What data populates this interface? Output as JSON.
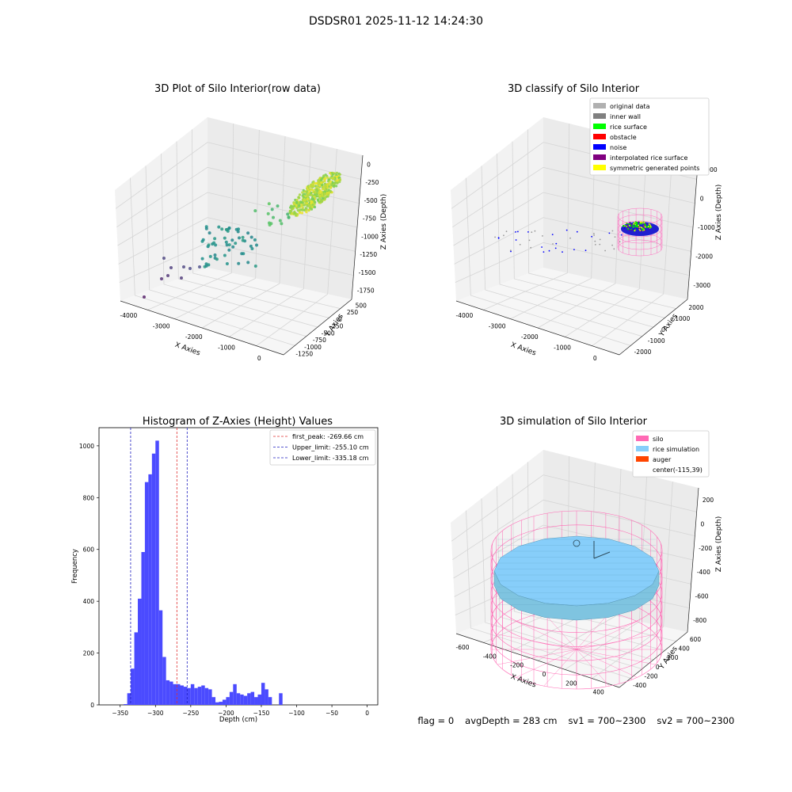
{
  "suptitle": "DSDSR01 2025-11-12 14:24:30",
  "footer": {
    "flag": "flag = 0",
    "avg_depth": "avgDepth = 283 cm",
    "sv1": "sv1 = 700~2300",
    "sv2": "sv2 = 700~2300"
  },
  "colors": {
    "hist_bar": "#4b4bff",
    "first_peak": "#e03030",
    "limits": "#2020c0",
    "silo": "#ff69b4",
    "rice_simulation": "#87cefa",
    "auger": "#ff4500",
    "viridis_low": "#440154",
    "viridis_mid": "#21918c",
    "viridis_high": "#fde725"
  },
  "chart_data": [
    {
      "type": "scatter",
      "projection": "3d",
      "title": "3D Plot of Silo Interior(row data)",
      "xlabel": "X Axies",
      "ylabel": "Y Axies",
      "zlabel": "Z Axies (Depth)",
      "x_ticks": [
        -4000,
        -3000,
        -2000,
        -1000,
        0
      ],
      "y_ticks": [
        -1250,
        -1000,
        -750,
        -500,
        -250,
        0,
        250,
        500
      ],
      "z_ticks": [
        -1750,
        -1500,
        -1250,
        -1000,
        -750,
        -500,
        -250,
        0
      ],
      "colormap": "viridis",
      "points_note_values": [
        {
          "x": -4300,
          "y": -300,
          "z": -1900
        },
        {
          "x": -3500,
          "y": -200,
          "z": -1700
        },
        {
          "x": -3300,
          "y": 0,
          "z": -1650
        },
        {
          "x": -2800,
          "y": 100,
          "z": -1550
        },
        {
          "x": -2200,
          "y": 150,
          "z": -1400
        },
        {
          "x": -1800,
          "y": 200,
          "z": -1250
        },
        {
          "x": -1200,
          "y": 250,
          "z": -900
        },
        {
          "x": -500,
          "y": 300,
          "z": -400
        }
      ]
    },
    {
      "type": "scatter",
      "projection": "3d",
      "title": "3D classify of Silo Interior",
      "xlabel": "X Axies",
      "ylabel": "Y Axies",
      "zlabel": "Z Axies (Depth)",
      "x_ticks": [
        -4000,
        -3000,
        -2000,
        -1000,
        0
      ],
      "y_ticks": [
        -2000,
        -1000,
        0,
        1000,
        2000
      ],
      "z_ticks": [
        -3000,
        -2000,
        -1000,
        0,
        1000
      ],
      "legend": {
        "placement": "top-right",
        "entries": [
          {
            "label": "original data",
            "color": "#b0b0b0"
          },
          {
            "label": "inner wall",
            "color": "#808080"
          },
          {
            "label": "rice surface",
            "color": "#00ff00"
          },
          {
            "label": "obstacle",
            "color": "#ff0000"
          },
          {
            "label": "noise",
            "color": "#0000ff"
          },
          {
            "label": "interpolated rice surface",
            "color": "#800080"
          },
          {
            "label": "symmetric generated points",
            "color": "#ffff00"
          }
        ]
      }
    },
    {
      "type": "bar",
      "title": "Histogram of Z-Axies (Height) Values",
      "xlabel": "Depth (cm)",
      "ylabel": "Frequency",
      "xlim": [
        -380,
        15
      ],
      "ylim": [
        0,
        1070
      ],
      "x_ticks": [
        -350,
        -300,
        -250,
        -200,
        -150,
        -100,
        -50,
        0
      ],
      "y_ticks": [
        0,
        200,
        400,
        600,
        800,
        1000
      ],
      "bin_start": -345,
      "bin_width": 5,
      "values": [
        3,
        45,
        140,
        280,
        410,
        590,
        860,
        890,
        970,
        1020,
        365,
        185,
        95,
        90,
        80,
        80,
        75,
        70,
        65,
        80,
        65,
        70,
        75,
        65,
        60,
        30,
        10,
        12,
        20,
        30,
        50,
        80,
        45,
        40,
        35,
        45,
        50,
        30,
        40,
        85,
        60,
        30,
        0,
        0,
        45
      ],
      "legend": {
        "placement": "top-right",
        "entries": [
          {
            "label": "first_peak: -269.66 cm",
            "value": -269.66,
            "color": "#e03030"
          },
          {
            "label": "Upper_limit: -255.10 cm",
            "value": -255.1,
            "color": "#2020c0"
          },
          {
            "label": "Lower_limit: -335.18 cm",
            "value": -335.18,
            "color": "#2020c0"
          }
        ]
      }
    },
    {
      "type": "surface",
      "projection": "3d",
      "title": "3D simulation of Silo Interior",
      "xlabel": "X Axies",
      "ylabel": "Y Axies",
      "zlabel": "Z Axies (Depth)",
      "x_ticks": [
        -600,
        -400,
        -200,
        0,
        200,
        400
      ],
      "y_ticks": [
        -400,
        -200,
        0,
        200,
        400,
        600
      ],
      "z_ticks": [
        -800,
        -600,
        -400,
        -200,
        0,
        200
      ],
      "legend": {
        "placement": "top-right",
        "entries": [
          {
            "label": "silo",
            "color": "#ff69b4"
          },
          {
            "label": "rice simulation",
            "color": "#87cefa"
          },
          {
            "label": "auger",
            "color": "#ff4500"
          },
          {
            "label": "center(-115,39)",
            "color": ""
          }
        ]
      }
    }
  ]
}
